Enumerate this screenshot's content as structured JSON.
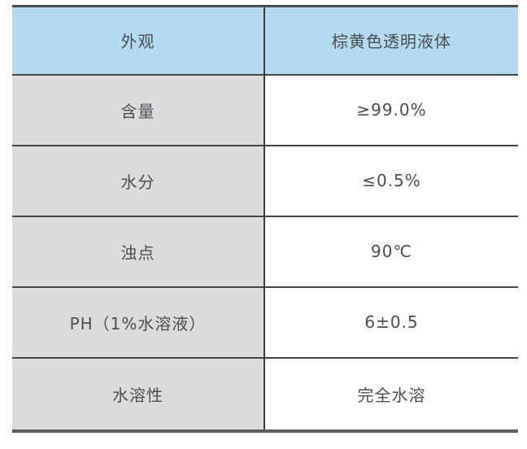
{
  "table": {
    "colors": {
      "header_bg": "#b3daee",
      "label_bg": "#dcdcdc",
      "value_bg": "#ffffff",
      "border": "#454545",
      "text": "#4a4f54"
    },
    "rows": [
      {
        "label": "外观",
        "value": "棕黄色透明液体",
        "header": true
      },
      {
        "label": "含量",
        "value": "≥99.0%",
        "header": false
      },
      {
        "label": "水分",
        "value": "≤0.5%",
        "header": false
      },
      {
        "label": "浊点",
        "value": "90℃",
        "header": false
      },
      {
        "label": "PH（1%水溶液）",
        "value": "6±0.5",
        "header": false
      },
      {
        "label": "水溶性",
        "value": "完全水溶",
        "header": false
      }
    ]
  }
}
